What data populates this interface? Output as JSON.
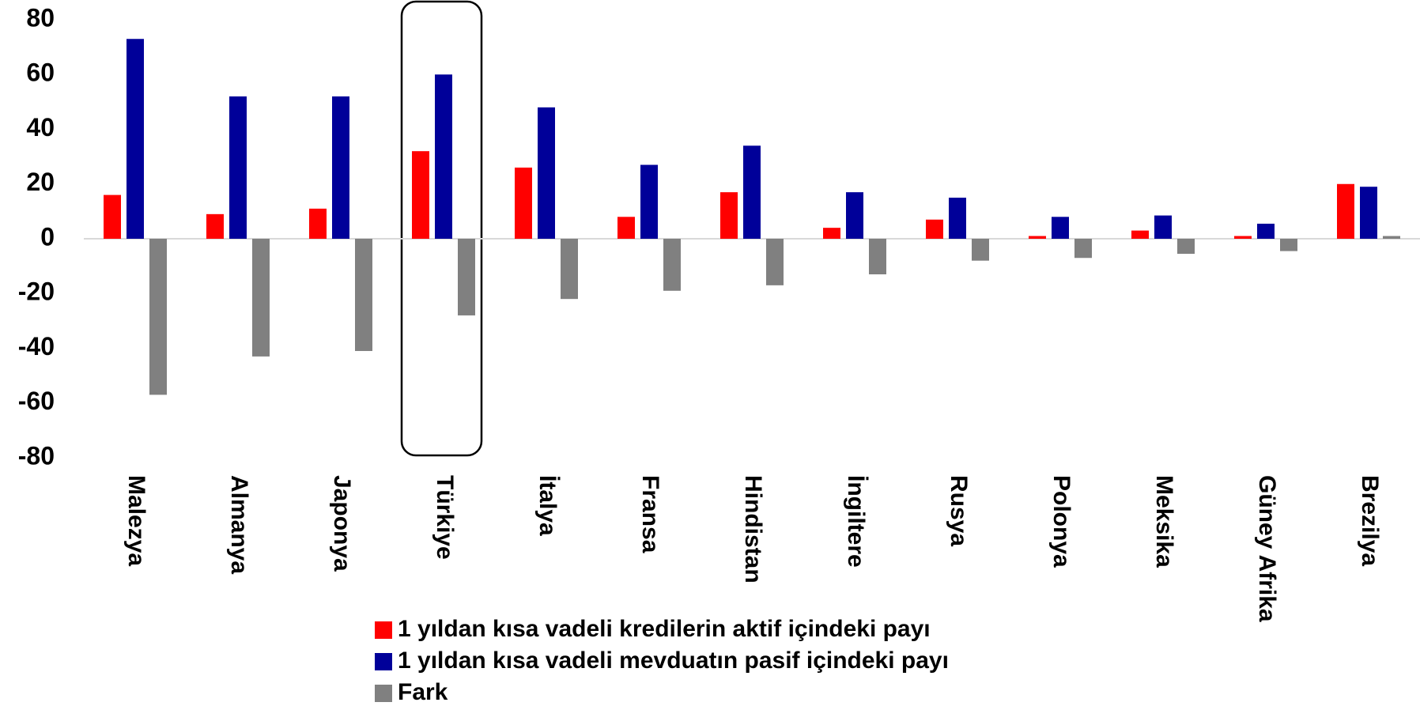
{
  "chart_data": {
    "type": "bar",
    "categories": [
      "Malezya",
      "Almanya",
      "Japonya",
      "Türkiye",
      "İtalya",
      "Fransa",
      "Hindistan",
      "İngiltere",
      "Rusya",
      "Polonya",
      "Meksika",
      "Güney Afrika",
      "Brezilya"
    ],
    "series": [
      {
        "name": "1 yıldan kısa vadeli kredilerin aktif içindeki payı",
        "color": "#ff0000",
        "values": [
          16,
          9,
          11,
          32,
          26,
          8,
          17,
          4,
          7,
          1,
          3,
          1,
          20
        ]
      },
      {
        "name": "1 yıldan kısa vadeli mevduatın pasif içindeki payı",
        "color": "#000099",
        "values": [
          73,
          52,
          52,
          60,
          48,
          27,
          34,
          17,
          15,
          8,
          8.5,
          5.5,
          19
        ]
      },
      {
        "name": "Fark",
        "color": "#808080",
        "values": [
          -57,
          -43,
          -41,
          -28,
          -22,
          -19,
          -17,
          -13,
          -8,
          -7,
          -5.5,
          -4.5,
          1
        ]
      }
    ],
    "ylim": [
      -80,
      80
    ],
    "yticks": [
      -80,
      -60,
      -40,
      -20,
      0,
      20,
      40,
      60,
      80
    ],
    "grid": false
  }
}
